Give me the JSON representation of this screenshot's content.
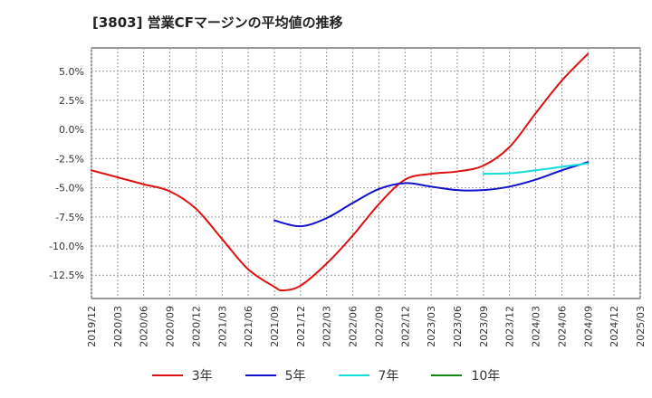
{
  "title": "[3803]  営業CFマージンの平均値の推移",
  "chart_data": {
    "type": "line",
    "title": "[3803]  営業CFマージンの平均値の推移",
    "xlabel": "",
    "ylabel": "",
    "ylim": [
      -14.5,
      7.0
    ],
    "grid": true,
    "legend_position": "bottom",
    "x_ticks": [
      "2019/12",
      "2020/03",
      "2020/06",
      "2020/09",
      "2020/12",
      "2021/03",
      "2021/06",
      "2021/09",
      "2021/12",
      "2022/03",
      "2022/06",
      "2022/09",
      "2022/12",
      "2023/03",
      "2023/06",
      "2023/09",
      "2023/12",
      "2024/03",
      "2024/06",
      "2024/09",
      "2024/12",
      "2025/03"
    ],
    "y_ticks": [
      5.0,
      2.5,
      0.0,
      -2.5,
      -5.0,
      -7.5,
      -10.0,
      -12.5
    ],
    "y_tick_labels": [
      "5.0%",
      "2.5%",
      "0.0%",
      "-2.5%",
      "-5.0%",
      "-7.5%",
      "-10.0%",
      "-12.5%"
    ],
    "series": [
      {
        "name": "3年",
        "color": "#dd1111",
        "x": [
          "2019/12",
          "2020/03",
          "2020/06",
          "2020/09",
          "2020/12",
          "2021/03",
          "2021/06",
          "2021/09",
          "2021/10",
          "2021/12",
          "2022/03",
          "2022/06",
          "2022/09",
          "2022/12",
          "2023/03",
          "2023/06",
          "2023/09",
          "2023/12",
          "2024/03",
          "2024/06",
          "2024/09"
        ],
        "values": [
          -3.5,
          -4.1,
          -4.7,
          -5.3,
          -6.8,
          -9.4,
          -12.0,
          -13.5,
          -13.8,
          -13.4,
          -11.5,
          -9.1,
          -6.4,
          -4.3,
          -3.8,
          -3.6,
          -3.1,
          -1.5,
          1.4,
          4.2,
          6.5
        ]
      },
      {
        "name": "5年",
        "color": "#1111cc",
        "x": [
          "2021/09",
          "2021/12",
          "2022/03",
          "2022/06",
          "2022/09",
          "2022/12",
          "2023/03",
          "2023/06",
          "2023/09",
          "2023/12",
          "2024/03",
          "2024/06",
          "2024/09"
        ],
        "values": [
          -7.8,
          -8.3,
          -7.6,
          -6.3,
          -5.1,
          -4.6,
          -4.9,
          -5.2,
          -5.2,
          -4.9,
          -4.3,
          -3.5,
          -2.8
        ]
      },
      {
        "name": "7年",
        "color": "#11dddd",
        "x": [
          "2023/09",
          "2023/12",
          "2024/03",
          "2024/06",
          "2024/09"
        ],
        "values": [
          -3.8,
          -3.75,
          -3.5,
          -3.2,
          -2.9
        ]
      },
      {
        "name": "10年",
        "color": "#118811",
        "x": [],
        "values": []
      }
    ]
  }
}
